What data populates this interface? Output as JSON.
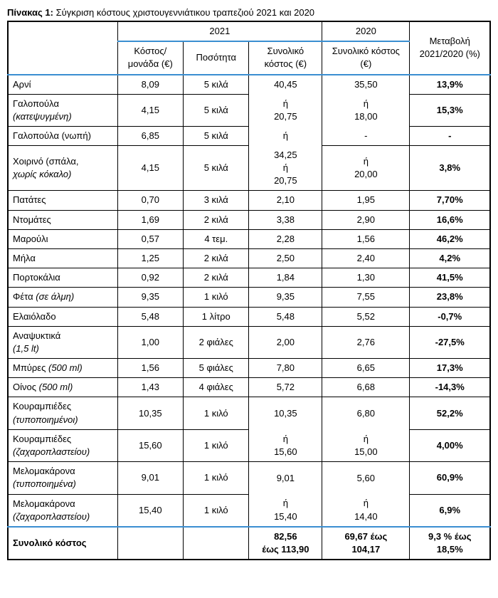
{
  "caption_strong": "Πίνακας 1:",
  "caption_rest": " Σύγκριση κόστους χριστουγεννιάτικου τραπεζιού 2021 και 2020",
  "head": {
    "y2021": "2021",
    "y2020": "2020",
    "change": "Μεταβολή 2021/2020 (%)",
    "unit_cost": "Κόστος/ μονάδα (€)",
    "qty": "Ποσότητα",
    "total_cost": "Συνολικό κόστος (€)",
    "total_cost_2020": "Συνολικό κόστος (€)"
  },
  "rows": {
    "lamb": {
      "name": "Αρνί",
      "uc": "8,09",
      "qty": "5 κιλά",
      "t21": "40,45",
      "t20": "35,50",
      "chg": "13,9%"
    },
    "turkey_f": {
      "name_a": "Γαλοπούλα",
      "name_b": "(κατεψυγμένη)",
      "uc": "4,15",
      "qty": "5 κιλά",
      "t21": "ή\n20,75",
      "t20": "ή\n18,00",
      "chg": "15,3%"
    },
    "turkey_fresh": {
      "name": "Γαλοπούλα (νωπή)",
      "uc": "6,85",
      "qty": "5 κιλά",
      "t21": "ή",
      "t20": "-",
      "chg": "-"
    },
    "pork": {
      "name_a": "Χοιρινό (σπάλα,",
      "name_b": "χωρίς κόκαλο)",
      "uc": "4,15",
      "qty": "5 κιλά",
      "t21": "34,25\nή\n20,75",
      "t20": "ή\n20,00",
      "chg": "3,8%"
    },
    "potato": {
      "name": "Πατάτες",
      "uc": "0,70",
      "qty": "3 κιλά",
      "t21": "2,10",
      "t20": "1,95",
      "chg": "7,70%"
    },
    "tomato": {
      "name": "Ντομάτες",
      "uc": "1,69",
      "qty": "2 κιλά",
      "t21": "3,38",
      "t20": "2,90",
      "chg": "16,6%"
    },
    "lettuce": {
      "name": "Μαρούλι",
      "uc": "0,57",
      "qty": "4 τεμ.",
      "t21": "2,28",
      "t20": "1,56",
      "chg": "46,2%"
    },
    "apples": {
      "name": "Μήλα",
      "uc": "1,25",
      "qty": "2 κιλά",
      "t21": "2,50",
      "t20": "2,40",
      "chg": "4,2%"
    },
    "oranges": {
      "name": "Πορτοκάλια",
      "uc": "0,92",
      "qty": "2 κιλά",
      "t21": "1,84",
      "t20": "1,30",
      "chg": "41,5%"
    },
    "feta": {
      "name": "Φέτα (σε άλμη)",
      "uc": "9,35",
      "qty": "1 κιλό",
      "t21": "9,35",
      "t20": "7,55",
      "chg": "23,8%"
    },
    "oil": {
      "name": "Ελαιόλαδο",
      "uc": "5,48",
      "qty": "1 λίτρο",
      "t21": "5,48",
      "t20": "5,52",
      "chg": "-0,7%"
    },
    "soft": {
      "name_a": "Αναψυκτικά",
      "name_b": "(1,5 lt)",
      "uc": "1,00",
      "qty": "2 φιάλες",
      "t21": "2,00",
      "t20": "2,76",
      "chg": "-27,5%"
    },
    "beer": {
      "name": "Μπύρες (500 ml)",
      "uc": "1,56",
      "qty": "5 φιάλες",
      "t21": "7,80",
      "t20": "6,65",
      "chg": "17,3%"
    },
    "wine": {
      "name": "Οίνος (500 ml)",
      "uc": "1,43",
      "qty": "4 φιάλες",
      "t21": "5,72",
      "t20": "6,68",
      "chg": "-14,3%"
    },
    "kor_a": {
      "name_a": "Κουραμπιέδες",
      "name_b": "(τυποποιημένοι)",
      "uc": "10,35",
      "qty": "1 κιλό",
      "t21": "10,35",
      "t20": "6,80",
      "chg": "52,2%"
    },
    "kor_b": {
      "name_a": "Κουραμπιέδες",
      "name_b": "(ζαχαροπλαστείου)",
      "uc": "15,60",
      "qty": "1 κιλό",
      "t21": "ή\n15,60",
      "t20": "ή\n15,00",
      "chg": "4,00%"
    },
    "mel_a": {
      "name_a": "Μελομακάρονα",
      "name_b": "(τυποποιημένα)",
      "uc": "9,01",
      "qty": "1 κιλό",
      "t21": "9,01",
      "t20": "5,60",
      "chg": "60,9%"
    },
    "mel_b": {
      "name_a": "Μελομακάρονα",
      "name_b": "(ζαχαροπλαστείου)",
      "uc": "15,40",
      "qty": "1 κιλό",
      "t21": "ή\n15,40",
      "t20": "ή\n14,40",
      "chg": "6,9%"
    }
  },
  "total": {
    "label": "Συνολικό κόστος",
    "t21": "82,56\nέως 113,90",
    "t20": "69,67 έως\n104,17",
    "chg": "9,3 % έως\n18,5%"
  },
  "colors": {
    "rule": "#3a8ed1",
    "text": "#000000",
    "background": "#ffffff"
  }
}
